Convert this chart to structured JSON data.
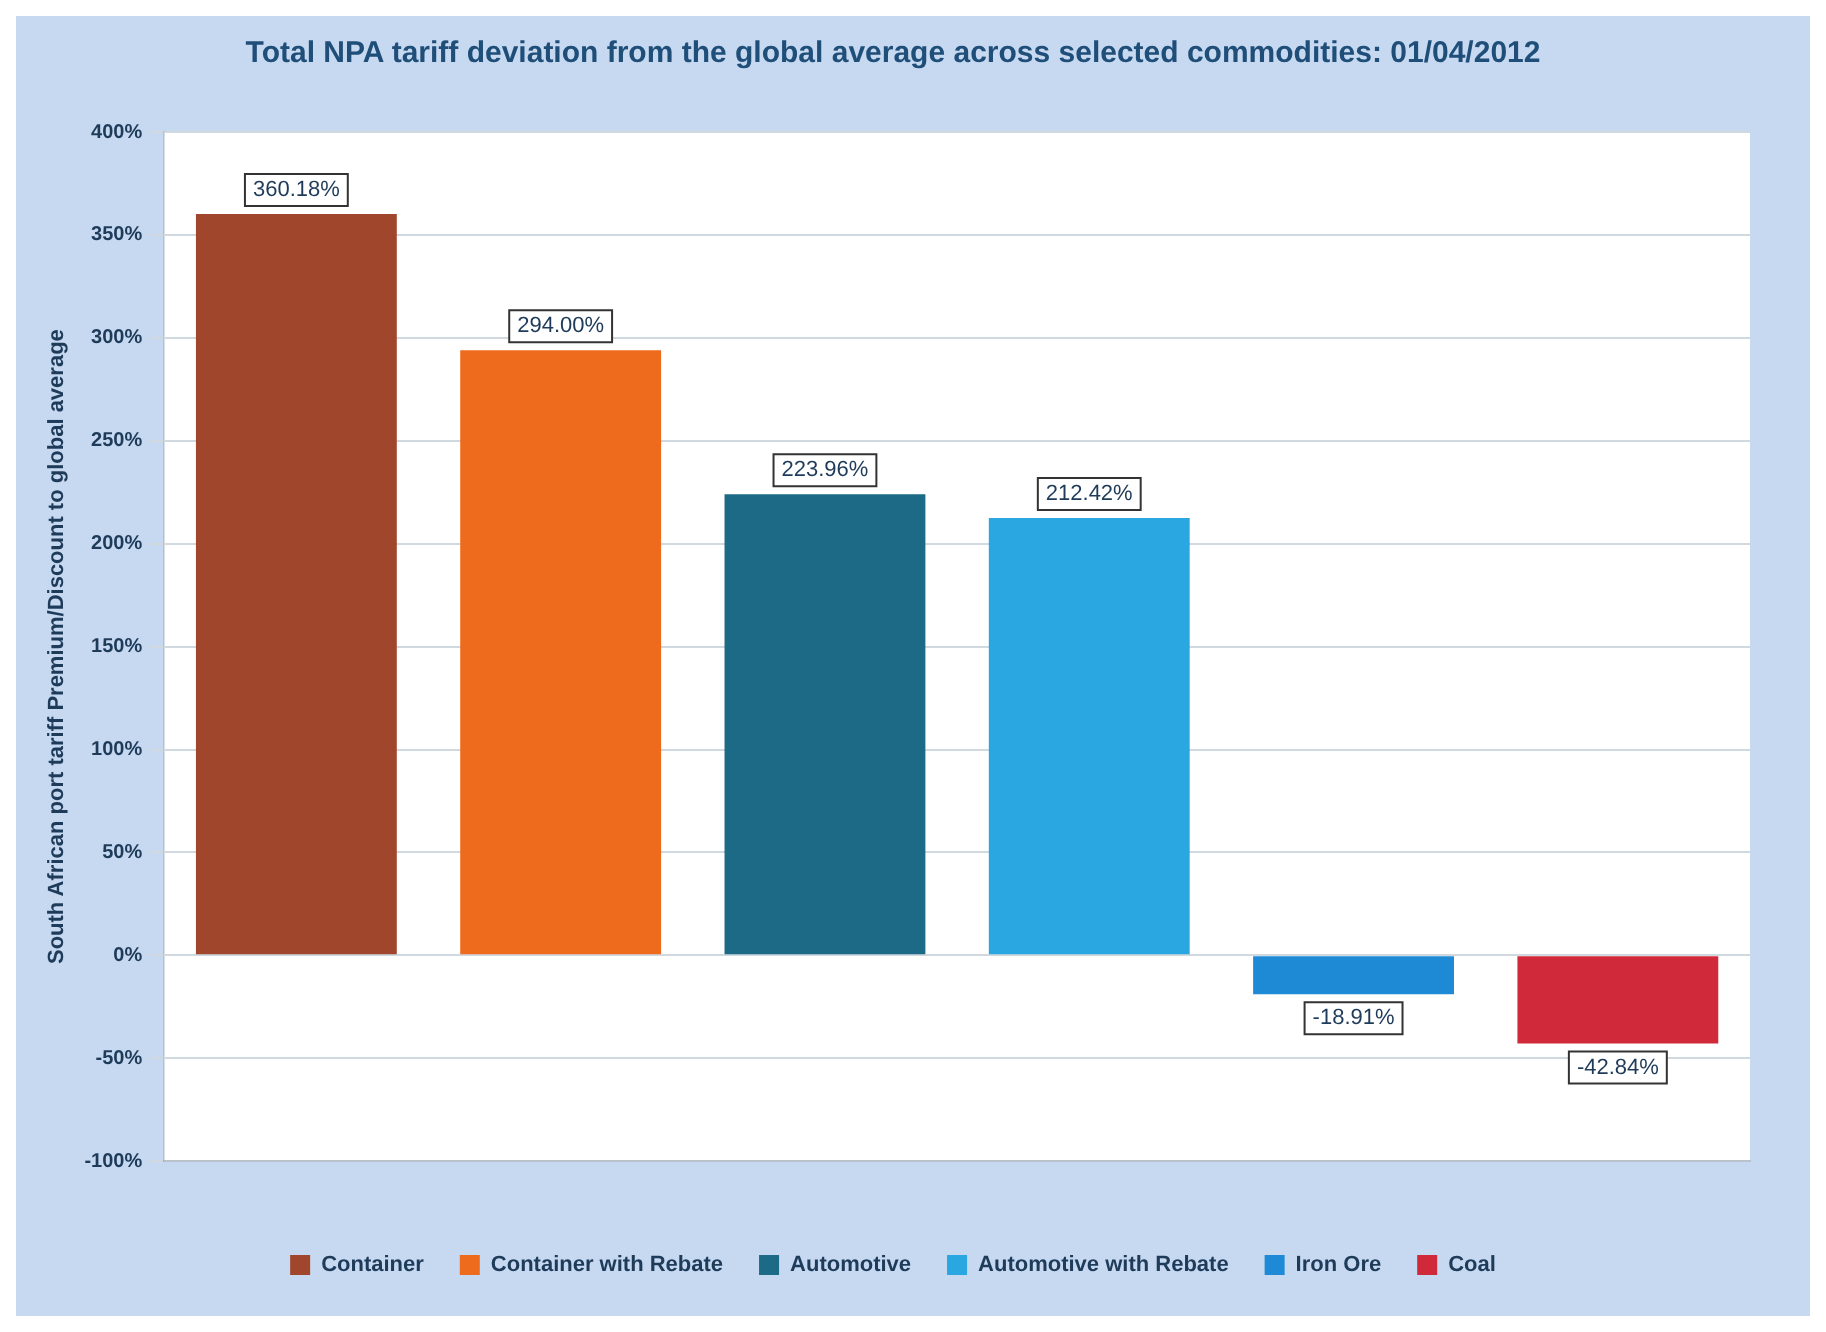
{
  "chart_data": {
    "type": "bar",
    "title": "Total NPA tariff deviation from the global average across selected commodities: 01/04/2012",
    "ylabel": "South African port tariff Premium/Discount to global average",
    "categories": [
      null,
      null,
      null,
      null,
      null,
      null
    ],
    "series": [
      {
        "name": "Container",
        "color": "#a0462c",
        "values": [
          360.18,
          null,
          null,
          null,
          null,
          null
        ],
        "value_labels": [
          "360.18%",
          null,
          null,
          null,
          null,
          null
        ]
      },
      {
        "name": "Container with Rebate",
        "color": "#ee6a1c",
        "values": [
          null,
          294.0,
          null,
          null,
          null,
          null
        ],
        "value_labels": [
          null,
          "294.00%",
          null,
          null,
          null,
          null
        ]
      },
      {
        "name": "Automotive",
        "color": "#1d6a86",
        "values": [
          null,
          null,
          223.96,
          null,
          null,
          null
        ],
        "value_labels": [
          null,
          null,
          "223.96%",
          null,
          null,
          null
        ]
      },
      {
        "name": "Automotive with Rebate",
        "color": "#2aa6e0",
        "values": [
          null,
          null,
          null,
          212.42,
          null,
          null
        ],
        "value_labels": [
          null,
          null,
          null,
          "212.42%",
          null,
          null
        ]
      },
      {
        "name": "Iron Ore",
        "color": "#1e8ad6",
        "values": [
          null,
          null,
          null,
          null,
          -18.91,
          null
        ],
        "value_labels": [
          null,
          null,
          null,
          null,
          "-18.91%",
          null
        ]
      },
      {
        "name": "Coal",
        "color": "#d02a3a",
        "values": [
          null,
          null,
          null,
          null,
          null,
          -42.84
        ],
        "value_labels": [
          null,
          null,
          null,
          null,
          null,
          "-42.84%"
        ]
      }
    ],
    "ylim": [
      -100,
      400
    ],
    "yticks": [
      {
        "value": -100,
        "label": "-100%"
      },
      {
        "value": -50,
        "label": "-50%"
      },
      {
        "value": 0,
        "label": "0%"
      },
      {
        "value": 50,
        "label": "50%"
      },
      {
        "value": 100,
        "label": "100%"
      },
      {
        "value": 150,
        "label": "150%"
      },
      {
        "value": 200,
        "label": "200%"
      },
      {
        "value": 250,
        "label": "250%"
      },
      {
        "value": 300,
        "label": "300%"
      },
      {
        "value": 350,
        "label": "350%"
      },
      {
        "value": 400,
        "label": "400%"
      }
    ],
    "grid": "y",
    "legend": "bottom"
  }
}
